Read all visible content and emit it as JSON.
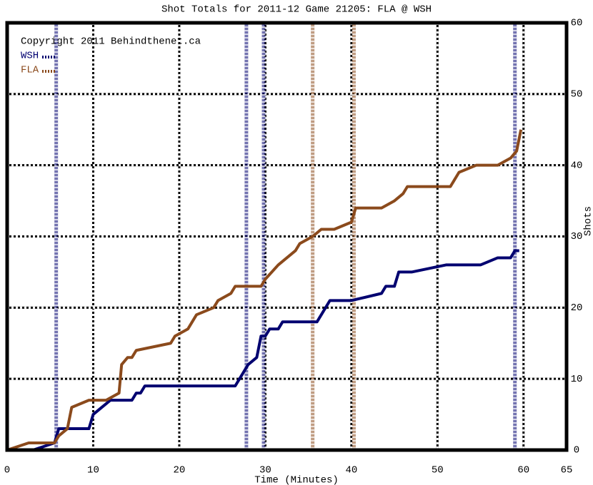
{
  "chart_data": {
    "type": "line",
    "title": "Shot Totals for 2011-12 Game 21205: FLA @ WSH",
    "annotation": "Copyright 2011 Behindthenet.ca",
    "xlabel": "Time (Minutes)",
    "ylabel": "Shots",
    "xlim": [
      0,
      65
    ],
    "ylim": [
      0,
      60
    ],
    "xticks": [
      0,
      10,
      20,
      30,
      40,
      50,
      60,
      65
    ],
    "yticks": [
      0,
      10,
      20,
      30,
      40,
      50,
      60
    ],
    "grid": true,
    "legend": "upper left",
    "series": [
      {
        "name": "WSH",
        "color": "#000070",
        "x": [
          0,
          3,
          5.5,
          6,
          9.5,
          10,
          11,
          12,
          14.5,
          15,
          15.5,
          16,
          26.5,
          27.5,
          28,
          29,
          29.5,
          30,
          30.5,
          31.5,
          32,
          36,
          37.5,
          40,
          43.5,
          44,
          45,
          45.5,
          47,
          51,
          55,
          57,
          58.5,
          59,
          59.5
        ],
        "values": [
          0,
          0,
          1,
          3,
          3,
          5,
          6,
          7,
          7,
          8,
          8,
          9,
          9,
          11,
          12,
          13,
          16,
          16,
          17,
          17,
          18,
          18,
          21,
          21,
          22,
          23,
          23,
          25,
          25,
          26,
          26,
          27,
          27,
          28,
          28
        ],
        "marker_x": [
          5.7,
          27.8,
          29.8,
          59
        ]
      },
      {
        "name": "FLA",
        "color": "#8b4a1c",
        "x": [
          0,
          2.5,
          5.5,
          6,
          7,
          7.5,
          9.5,
          11.5,
          13,
          13.3,
          14,
          14.5,
          15,
          19,
          19.5,
          21,
          22,
          24,
          24.5,
          26,
          26.5,
          29.5,
          30,
          31.5,
          33.5,
          34,
          35.5,
          36.5,
          38,
          40,
          40.5,
          43.5,
          45,
          46,
          46.5,
          51.5,
          52.5,
          54.5,
          57,
          58.5,
          59.2,
          59.7
        ],
        "values": [
          0,
          1,
          1,
          2,
          3,
          6,
          7,
          7,
          8,
          12,
          13,
          13,
          14,
          15,
          16,
          17,
          19,
          20,
          21,
          22,
          23,
          23,
          24,
          26,
          28,
          29,
          30,
          31,
          31,
          32,
          34,
          34,
          35,
          36,
          37,
          37,
          39,
          40,
          40,
          41,
          42,
          45
        ],
        "marker_x": [
          35.5,
          40.3
        ]
      }
    ]
  }
}
